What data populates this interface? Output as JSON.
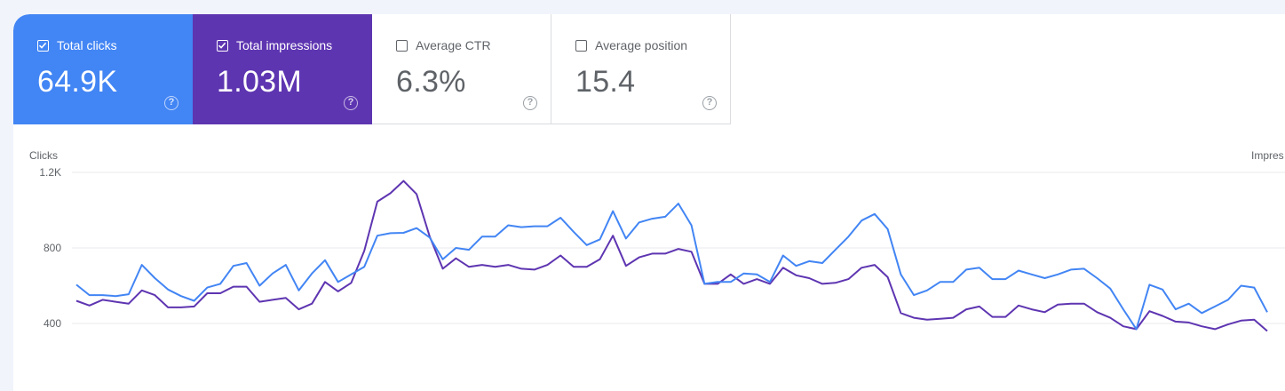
{
  "metrics": {
    "clicks": {
      "label": "Total clicks",
      "value": "64.9K",
      "checked": true,
      "color": "#4285f4"
    },
    "impressions": {
      "label": "Total impressions",
      "value": "1.03M",
      "checked": true,
      "color": "#5e35b1"
    },
    "ctr": {
      "label": "Average CTR",
      "value": "6.3%",
      "checked": false
    },
    "position": {
      "label": "Average position",
      "value": "15.4",
      "checked": false
    }
  },
  "help_glyph": "?",
  "chart_data": {
    "type": "line",
    "ylabel_left": "Clicks",
    "ylabel_right": "Impres",
    "y_ticks": [
      "1.2K",
      "800",
      "400"
    ],
    "ylim": [
      160,
      1200
    ],
    "series": [
      {
        "name": "Clicks",
        "color": "#4285f4",
        "values": [
          605,
          550,
          550,
          545,
          555,
          710,
          640,
          580,
          545,
          520,
          590,
          610,
          705,
          720,
          600,
          665,
          710,
          575,
          665,
          735,
          620,
          660,
          700,
          865,
          878,
          880,
          905,
          855,
          740,
          800,
          790,
          860,
          860,
          920,
          910,
          915,
          915,
          960,
          885,
          815,
          845,
          995,
          850,
          935,
          955,
          965,
          1035,
          920,
          610,
          620,
          620,
          665,
          660,
          620,
          760,
          705,
          730,
          720,
          790,
          860,
          945,
          980,
          900,
          660,
          550,
          575,
          620,
          620,
          685,
          695,
          635,
          635,
          680,
          660,
          640,
          660,
          685,
          690,
          640,
          585,
          475,
          370,
          605,
          580,
          475,
          505,
          455,
          490,
          525,
          600,
          590,
          460
        ]
      },
      {
        "name": "Impressions",
        "color": "#5e35b1",
        "values": [
          520,
          495,
          525,
          515,
          505,
          575,
          550,
          485,
          485,
          490,
          560,
          560,
          595,
          595,
          515,
          525,
          535,
          475,
          505,
          620,
          570,
          615,
          785,
          1045,
          1090,
          1155,
          1085,
          860,
          690,
          745,
          700,
          710,
          700,
          710,
          690,
          685,
          710,
          760,
          700,
          700,
          740,
          865,
          705,
          750,
          770,
          770,
          795,
          780,
          610,
          610,
          660,
          610,
          635,
          610,
          695,
          655,
          640,
          610,
          615,
          635,
          695,
          710,
          645,
          455,
          430,
          420,
          425,
          430,
          475,
          490,
          435,
          435,
          495,
          475,
          460,
          500,
          505,
          505,
          460,
          430,
          385,
          370,
          465,
          440,
          410,
          405,
          385,
          370,
          395,
          415,
          420,
          360
        ]
      }
    ]
  }
}
